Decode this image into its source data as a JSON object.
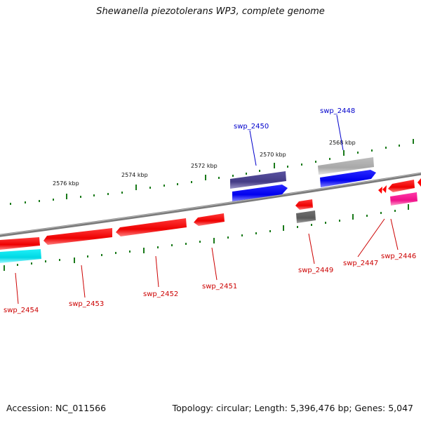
{
  "title": "Shewanella piezotolerans WP3, complete genome",
  "accession": "Accession: NC_011566",
  "summary": "Topology: circular; Length: 5,396,476 bp; Genes: 5,047",
  "scale_labels": [
    "2576 kbp",
    "2574 kbp",
    "2572 kbp",
    "2570 kbp",
    "2568 kbp"
  ],
  "genes": [
    {
      "name": "swp_2454",
      "strand": "reverse",
      "color": "#ff0000"
    },
    {
      "name": "swp_2453",
      "strand": "reverse",
      "color": "#ff0000"
    },
    {
      "name": "swp_2452",
      "strand": "reverse",
      "color": "#ff0000"
    },
    {
      "name": "swp_2451",
      "strand": "reverse",
      "color": "#ff0000"
    },
    {
      "name": "swp_2450",
      "strand": "forward",
      "color": "#0000ff"
    },
    {
      "name": "swp_2449",
      "strand": "reverse",
      "color": "#ff0000"
    },
    {
      "name": "swp_2448",
      "strand": "forward",
      "color": "#0000ff"
    },
    {
      "name": "swp_2447",
      "strand": "reverse",
      "color": "#ff0000"
    },
    {
      "name": "swp_2446",
      "strand": "reverse",
      "color": "#ff0000"
    }
  ],
  "colors": {
    "forward_cds": "#0000ff",
    "reverse_cds": "#ff0000",
    "forward_feature_dark": "#4b4390",
    "forward_feature_grey": "#b8b8b8",
    "reverse_feature_cyan": "#00e5ee",
    "reverse_feature_magenta": "#ff1493",
    "reverse_feature_grey": "#6b6b6b",
    "backbone": "#808080",
    "tick": "#1a7a1a",
    "forward_label": "#0000cc",
    "reverse_label": "#cc0000"
  }
}
